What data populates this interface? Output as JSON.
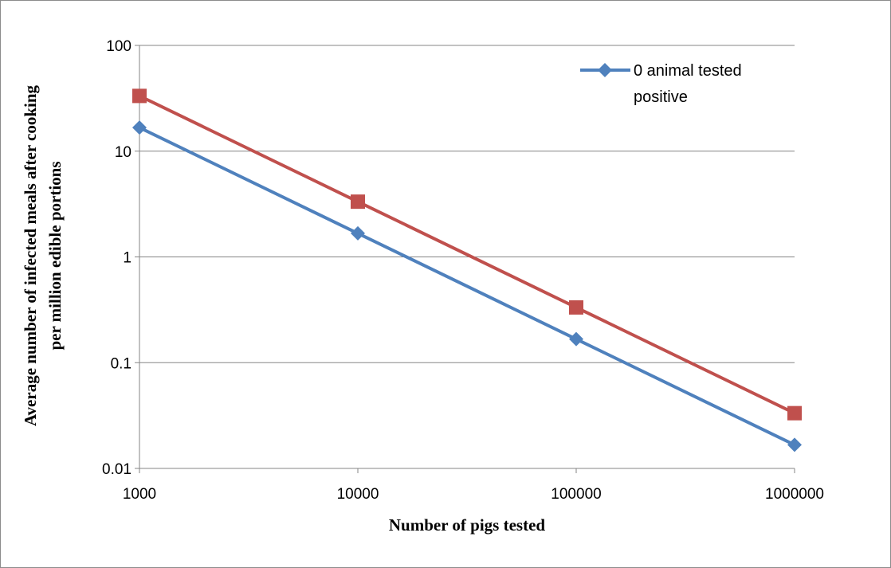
{
  "chart_data": {
    "type": "line",
    "title": "",
    "xlabel": "Number of pigs tested",
    "ylabel_lines": [
      "Average number of infected meals after cooking",
      "per million edible portions"
    ],
    "x_scale": "log",
    "y_scale": "log",
    "x": [
      1000,
      10000,
      100000,
      1000000
    ],
    "x_tick_labels": [
      "1000",
      "10000",
      "100000",
      "1000000"
    ],
    "y_ticks": [
      0.01,
      0.1,
      1,
      10,
      100
    ],
    "y_tick_labels": [
      "0.01",
      "0.1",
      "1",
      "10",
      "100"
    ],
    "ylim": [
      0.01,
      100
    ],
    "xlim": [
      1000,
      1000000
    ],
    "grid": "horizontal major gridlines",
    "legend_position": "top-right",
    "series": [
      {
        "name": "0 animal tested positive",
        "values": [
          16.7,
          1.67,
          0.167,
          0.0167
        ],
        "color": "#4f81bd",
        "marker": "diamond"
      },
      {
        "values": [
          33.3,
          3.33,
          0.333,
          0.0333
        ],
        "color": "#c0504d",
        "marker": "square"
      }
    ],
    "legend": {
      "line1": "0 animal tested",
      "line2": "positive"
    }
  }
}
